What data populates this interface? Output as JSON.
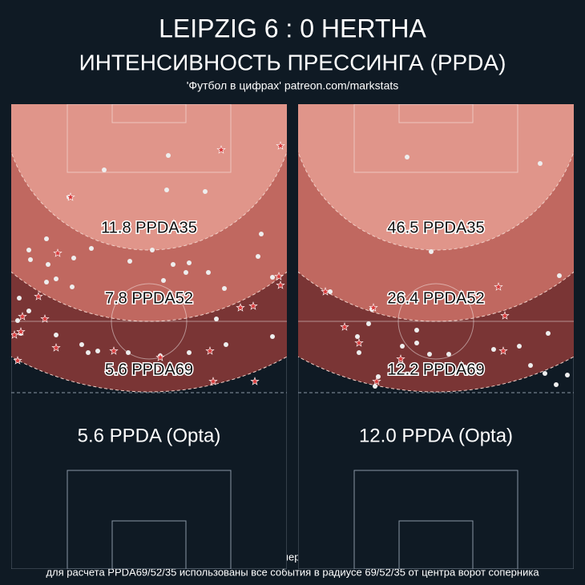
{
  "header": {
    "title": "LEIPZIG  6 : 0  HERTHA",
    "subtitle": "ИНТЕНСИВНОСТЬ ПРЕССИНГА (PPDA)",
    "source": "'Футбол в цифрах' patreon.com/markstats"
  },
  "panels": [
    {
      "zones": [
        "11.8 PPDA35",
        "7.8 PPDA52",
        "5.6 PPDA69"
      ],
      "opta": "5.6 PPDA (Opta)"
    },
    {
      "zones": [
        "46.5 PPDA35",
        "26.4 PPDA52",
        "12.2 PPDA69"
      ],
      "opta": "12.0 PPDA (Opta)"
    }
  ],
  "footer": [
    "PPDA - количество попыток передач соперника на одно оборонительное действие",
    "для расчета PPDA69/52/35 использованы все события в радиусе 69/52/35 от центра ворот соперника"
  ]
}
